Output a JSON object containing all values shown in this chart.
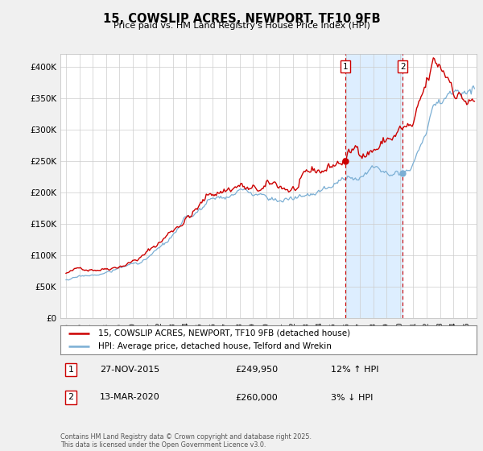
{
  "title": "15, COWSLIP ACRES, NEWPORT, TF10 9FB",
  "subtitle": "Price paid vs. HM Land Registry's House Price Index (HPI)",
  "legend_line1": "15, COWSLIP ACRES, NEWPORT, TF10 9FB (detached house)",
  "legend_line2": "HPI: Average price, detached house, Telford and Wrekin",
  "annotation1_label": "1",
  "annotation1_date": "27-NOV-2015",
  "annotation1_price": "£249,950",
  "annotation1_hpi": "12% ↑ HPI",
  "annotation1_year": 2015.917,
  "annotation1_value": 249950,
  "annotation2_label": "2",
  "annotation2_date": "13-MAR-2020",
  "annotation2_price": "£260,000",
  "annotation2_hpi": "3% ↓ HPI",
  "annotation2_year": 2020.208,
  "annotation2_value": 260000,
  "red_line_color": "#cc0000",
  "blue_line_color": "#7bafd4",
  "shade_color": "#ddeeff",
  "background_color": "#f0f0f0",
  "plot_bg_color": "#ffffff",
  "grid_color": "#cccccc",
  "copyright_text": "Contains HM Land Registry data © Crown copyright and database right 2025.\nThis data is licensed under the Open Government Licence v3.0.",
  "ylim": [
    0,
    420000
  ],
  "yticks": [
    0,
    50000,
    100000,
    150000,
    200000,
    250000,
    300000,
    350000,
    400000
  ],
  "xlabel_years": [
    1995,
    1996,
    1997,
    1998,
    1999,
    2000,
    2001,
    2002,
    2003,
    2004,
    2005,
    2006,
    2007,
    2008,
    2009,
    2010,
    2011,
    2012,
    2013,
    2014,
    2015,
    2016,
    2017,
    2018,
    2019,
    2020,
    2021,
    2022,
    2023,
    2024,
    2025
  ]
}
